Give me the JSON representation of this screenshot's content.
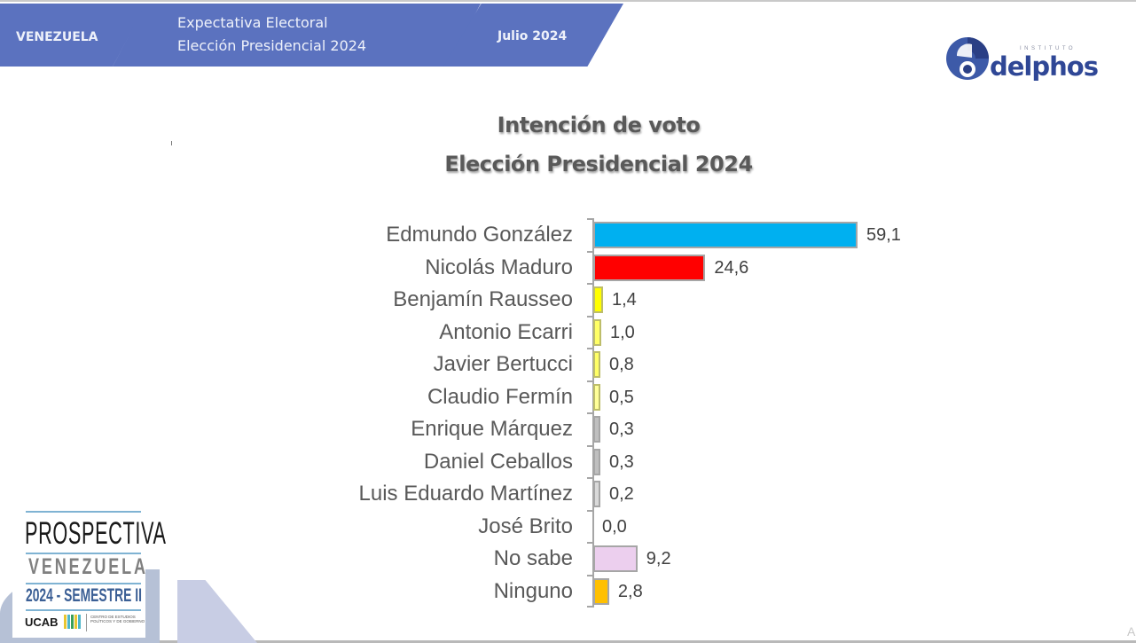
{
  "header": {
    "country": "VENEZUELA",
    "title_line1": "Expectativa Electoral",
    "title_line2": "Elección Presidencial 2024",
    "date": "Julio 2024",
    "banner_color": "#5b72bf"
  },
  "logo": {
    "small_text": "INSTITUTO",
    "name": "delphos",
    "icon": "delphos-logo-icon"
  },
  "badge": {
    "line1": "PROSPECTIVA",
    "line2": "VENEZUELA",
    "line3": "2024 - SEMESTRE II",
    "org": "UCAB",
    "org_sub": "CENTRO DE ESTUDIOS POLÍTICOS Y DE GOBIERNO"
  },
  "corner_text": "A",
  "chart_data": {
    "type": "bar",
    "orientation": "horizontal",
    "title": "Intención de voto",
    "subtitle": "Elección Presidencial 2024",
    "xlabel": "",
    "ylabel": "",
    "grid": false,
    "legend": "none",
    "value_format": "decimal comma, 1 decimal",
    "xlim": [
      0,
      60
    ],
    "categories": [
      "Edmundo González",
      "Nicolás Maduro",
      "Benjamín Rausseo",
      "Antonio Ecarri",
      "Javier Bertucci",
      "Claudio Fermín",
      "Enrique Márquez",
      "Daniel Ceballos",
      "Luis Eduardo Martínez",
      "José Brito",
      "No sabe",
      "Ninguno"
    ],
    "values": [
      59.1,
      24.6,
      1.4,
      1.0,
      0.8,
      0.5,
      0.3,
      0.3,
      0.2,
      0.0,
      9.2,
      2.8
    ],
    "value_labels": [
      "59,1",
      "24,6",
      "1,4",
      "1,0",
      "0,8",
      "0,5",
      "0,3",
      "0,3",
      "0,2",
      "0,0",
      "9,2",
      "2,8"
    ],
    "colors": [
      "#00b0f0",
      "#ff0000",
      "#ffff00",
      "#ffff66",
      "#ffff66",
      "#ffff99",
      "#bfbfbf",
      "#bfbfbf",
      "#d9d9d9",
      "#ffffff",
      "#eccfee",
      "#ffc000"
    ]
  }
}
